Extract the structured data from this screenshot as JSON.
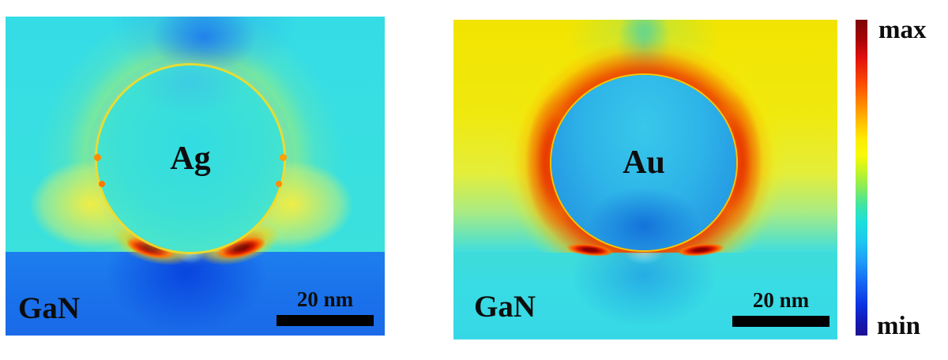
{
  "chart_data": [
    {
      "type": "heatmap",
      "panel": "left",
      "particle_label": "Ag",
      "substrate_label": "GaN",
      "scale_bar": "20 nm",
      "colormap": "jet",
      "value_range": [
        "min",
        "max"
      ],
      "qualitative_features": [
        "cyan ambient field above GaN substrate",
        "Ag nanosphere interior uniform cyan-green",
        "yellow enhancement ring along particle rim",
        "strong red hot spots at the two particle-substrate contact points",
        "dark-blue field minimum inside substrate below the particle",
        "light-blue low-field lobe above the particle"
      ]
    },
    {
      "type": "heatmap",
      "panel": "right",
      "particle_label": "Au",
      "substrate_label": "GaN",
      "scale_bar": "20 nm",
      "colormap": "jet",
      "value_range": [
        "min",
        "max"
      ],
      "qualitative_features": [
        "yellow ambient field above substrate",
        "intense red-orange enhancement halo surrounding the Au nanosphere",
        "green-teal low-field fan directly above the particle",
        "Au nanosphere interior cyan-blue with darker blue lower core",
        "red hot spots at the particle-substrate contact points",
        "cyan GaN substrate region"
      ]
    }
  ],
  "panels": [
    {
      "particle_label": "Ag",
      "substrate_label": "GaN",
      "scalebar_label": "20 nm"
    },
    {
      "particle_label": "Au",
      "substrate_label": "GaN",
      "scalebar_label": "20 nm"
    }
  ],
  "colorbar": {
    "max_label": "max",
    "min_label": "min",
    "colormap": "jet",
    "gradient_top_to_bottom": [
      "#7d0606 0%",
      "#a50505 6%",
      "#e11010 12%",
      "#fb4a00 20%",
      "#ff8c00 27%",
      "#ffc400 33%",
      "#fdec00 38%",
      "#f8fa08 43%",
      "#c4f426 48%",
      "#7cea64 54%",
      "#3ce4a8 59%",
      "#1ce0da 64%",
      "#1ec8ee 70%",
      "#1fa0f6 76%",
      "#1668f4 83%",
      "#0c34e4 90%",
      "#1418b0 96%",
      "#1c1292 100%"
    ]
  },
  "colors": {
    "ag_ambient_cyan": "#39e0de",
    "ag_substrate_blue": "#1b74ea",
    "ag_substrate_min_blue": "#0842de",
    "au_ambient_yellow": "#f0e607",
    "au_halo_red": "#eb3200",
    "au_particle_blue": "#2aaee8",
    "au_substrate_cyan": "#38dce4",
    "hotspot_dark_red": "#7e0000",
    "label_black": "#0d0d0d"
  }
}
